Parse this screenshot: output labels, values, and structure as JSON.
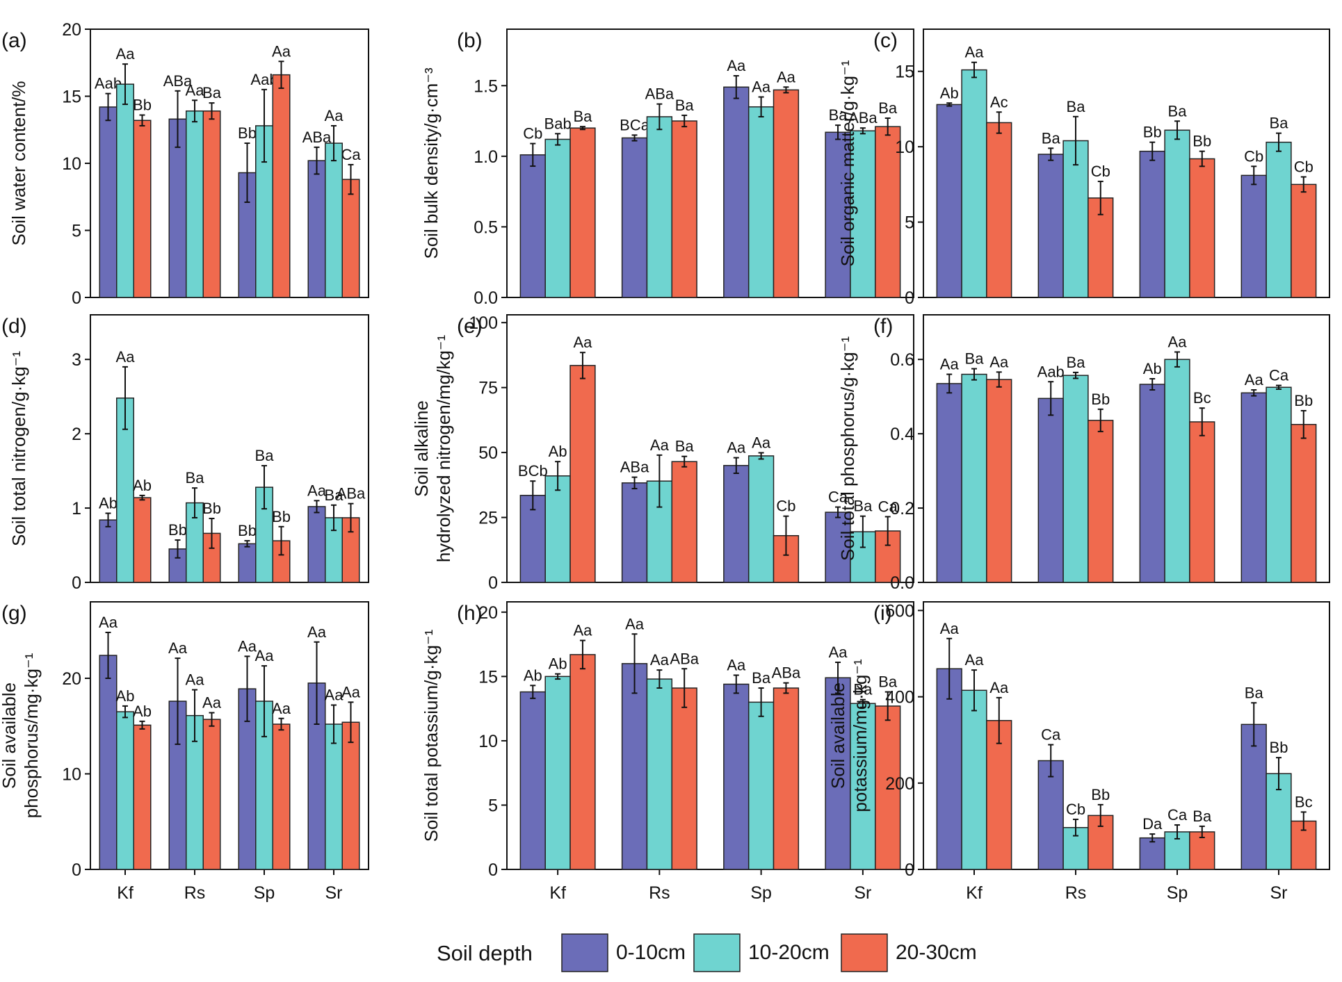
{
  "series_colors": [
    "#6b6db8",
    "#6fd4d0",
    "#f06a4e"
  ],
  "legend": {
    "title": "Soil depth",
    "items": [
      "0-10cm",
      "10-20cm",
      "20-30cm"
    ]
  },
  "chart_data": [
    {
      "type": "bar",
      "panel": "(a)",
      "ylabel": "Soil water content/%",
      "categories": [
        "Kf",
        "Rs",
        "Sp",
        "Sr"
      ],
      "ylim": [
        0,
        20
      ],
      "ticks": [
        0,
        5,
        10,
        15,
        20
      ],
      "decimals": 0,
      "show_xticks": false,
      "series": [
        {
          "name": "0-10cm",
          "values": [
            14.2,
            13.3,
            9.3,
            10.2
          ],
          "errors": [
            1.0,
            2.1,
            2.2,
            1.0
          ],
          "labels": [
            "Aab",
            "ABa",
            "Bb",
            "ABa"
          ]
        },
        {
          "name": "10-20cm",
          "values": [
            15.9,
            13.9,
            12.8,
            11.5
          ],
          "errors": [
            1.5,
            0.8,
            2.7,
            1.3
          ],
          "labels": [
            "Aa",
            "Aa",
            "Aab",
            "Aa"
          ]
        },
        {
          "name": "20-30cm",
          "values": [
            13.2,
            13.9,
            16.6,
            8.8
          ],
          "errors": [
            0.4,
            0.6,
            1.0,
            1.1
          ],
          "labels": [
            "Bb",
            "Ba",
            "Aa",
            "Ca"
          ]
        }
      ]
    },
    {
      "type": "bar",
      "panel": "(b)",
      "ylabel": "Soil bulk density/g·cm⁻³",
      "categories": [
        "Kf",
        "Rs",
        "Sp",
        "Sr"
      ],
      "ylim": [
        0,
        1.9
      ],
      "ticks": [
        0,
        0.5,
        1.0,
        1.5
      ],
      "decimals": 1,
      "show_xticks": false,
      "series": [
        {
          "name": "0-10cm",
          "values": [
            1.01,
            1.13,
            1.49,
            1.17
          ],
          "errors": [
            0.08,
            0.02,
            0.08,
            0.05
          ],
          "labels": [
            "Cb",
            "BCa",
            "Aa",
            "Ba"
          ]
        },
        {
          "name": "10-20cm",
          "values": [
            1.12,
            1.28,
            1.35,
            1.18
          ],
          "errors": [
            0.04,
            0.09,
            0.07,
            0.02
          ],
          "labels": [
            "Bab",
            "ABa",
            "Aa",
            "ABa"
          ]
        },
        {
          "name": "20-30cm",
          "values": [
            1.2,
            1.25,
            1.47,
            1.21
          ],
          "errors": [
            0.01,
            0.04,
            0.02,
            0.06
          ],
          "labels": [
            "Ba",
            "Ba",
            "Aa",
            "Ba"
          ]
        }
      ]
    },
    {
      "type": "bar",
      "panel": "(c)",
      "ylabel": "Soil organic matter/g·kg⁻¹",
      "categories": [
        "Kf",
        "Rs",
        "Sp",
        "Sr"
      ],
      "ylim": [
        0,
        17.8
      ],
      "ticks": [
        0,
        5,
        10,
        15
      ],
      "decimals": 0,
      "show_xticks": false,
      "series": [
        {
          "name": "0-10cm",
          "values": [
            12.8,
            9.5,
            9.7,
            8.1
          ],
          "errors": [
            0.1,
            0.4,
            0.6,
            0.6
          ],
          "labels": [
            "Ab",
            "Ba",
            "Bb",
            "Cb"
          ]
        },
        {
          "name": "10-20cm",
          "values": [
            15.1,
            10.4,
            11.1,
            10.3
          ],
          "errors": [
            0.5,
            1.6,
            0.6,
            0.6
          ],
          "labels": [
            "Aa",
            "Ba",
            "Ba",
            "Ba"
          ]
        },
        {
          "name": "20-30cm",
          "values": [
            11.6,
            6.6,
            9.2,
            7.5
          ],
          "errors": [
            0.7,
            1.1,
            0.5,
            0.5
          ],
          "labels": [
            "Ac",
            "Cb",
            "Bb",
            "Cb"
          ]
        }
      ]
    },
    {
      "type": "bar",
      "panel": "(d)",
      "ylabel": "Soil total nitrogen/g·kg⁻¹",
      "categories": [
        "Kf",
        "Rs",
        "Sp",
        "Sr"
      ],
      "ylim": [
        0,
        3.6
      ],
      "ticks": [
        0,
        1,
        2,
        3
      ],
      "decimals": 0,
      "show_xticks": false,
      "series": [
        {
          "name": "0-10cm",
          "values": [
            0.84,
            0.45,
            0.52,
            1.02
          ],
          "errors": [
            0.09,
            0.12,
            0.04,
            0.08
          ],
          "labels": [
            "Ab",
            "Bb",
            "Bb",
            "Aa"
          ]
        },
        {
          "name": "10-20cm",
          "values": [
            2.48,
            1.07,
            1.28,
            0.87
          ],
          "errors": [
            0.42,
            0.2,
            0.29,
            0.17
          ],
          "labels": [
            "Aa",
            "Ba",
            "Ba",
            "Ba"
          ]
        },
        {
          "name": "20-30cm",
          "values": [
            1.14,
            0.66,
            0.56,
            0.87
          ],
          "errors": [
            0.03,
            0.2,
            0.19,
            0.19
          ],
          "labels": [
            "Ab",
            "Bb",
            "Bb",
            "ABa"
          ]
        }
      ]
    },
    {
      "type": "bar",
      "panel": "(e)",
      "ylabel": "Soil alkaline hydrolyzed nitrogen/mg/kg⁻¹",
      "categories": [
        "Kf",
        "Rs",
        "Sp",
        "Sr"
      ],
      "ylim": [
        0,
        103
      ],
      "ticks": [
        0,
        25,
        50,
        75,
        100
      ],
      "decimals": 0,
      "show_xticks": false,
      "series": [
        {
          "name": "0-10cm",
          "values": [
            33.5,
            38.3,
            45,
            27
          ],
          "errors": [
            5.5,
            2.2,
            3,
            2
          ],
          "labels": [
            "BCb",
            "ABa",
            "Aa",
            "Ca"
          ]
        },
        {
          "name": "10-20cm",
          "values": [
            41,
            39,
            48.7,
            19.5
          ],
          "errors": [
            5.5,
            10,
            1.2,
            6
          ],
          "labels": [
            "Ab",
            "Aa",
            "Aa",
            "Ba"
          ]
        },
        {
          "name": "20-30cm",
          "values": [
            83.5,
            46.5,
            18,
            19.8
          ],
          "errors": [
            5,
            2,
            7.5,
            5.5
          ],
          "labels": [
            "Aa",
            "Ba",
            "Cb",
            "Ca"
          ]
        }
      ]
    },
    {
      "type": "bar",
      "panel": "(f)",
      "ylabel": "Soil total phosphorus/g·kg⁻¹",
      "categories": [
        "Kf",
        "Rs",
        "Sp",
        "Sr"
      ],
      "ylim": [
        0,
        0.72
      ],
      "ticks": [
        0,
        0.2,
        0.4,
        0.6
      ],
      "decimals": 1,
      "show_xticks": false,
      "series": [
        {
          "name": "0-10cm",
          "values": [
            0.535,
            0.495,
            0.533,
            0.51
          ],
          "errors": [
            0.025,
            0.045,
            0.015,
            0.008
          ],
          "labels": [
            "Aa",
            "Aab",
            "Ab",
            "Aa"
          ]
        },
        {
          "name": "10-20cm",
          "values": [
            0.56,
            0.557,
            0.6,
            0.525
          ],
          "errors": [
            0.015,
            0.008,
            0.02,
            0.005
          ],
          "labels": [
            "Ba",
            "Ba",
            "Aa",
            "Ca"
          ]
        },
        {
          "name": "20-30cm",
          "values": [
            0.546,
            0.436,
            0.432,
            0.425
          ],
          "errors": [
            0.02,
            0.03,
            0.037,
            0.037
          ],
          "labels": [
            "Aa",
            "Bb",
            "Bc",
            "Bb"
          ]
        }
      ]
    },
    {
      "type": "bar",
      "panel": "(g)",
      "ylabel": "Soil available phosphorus/mg·kg⁻¹",
      "categories": [
        "Kf",
        "Rs",
        "Sp",
        "Sr"
      ],
      "ylim": [
        0,
        28
      ],
      "ticks": [
        0,
        10,
        20
      ],
      "decimals": 0,
      "show_xticks": true,
      "series": [
        {
          "name": "0-10cm",
          "values": [
            22.4,
            17.6,
            18.9,
            19.5
          ],
          "errors": [
            2.4,
            4.5,
            3.4,
            4.3
          ],
          "labels": [
            "Aa",
            "Aa",
            "Aa",
            "Aa"
          ]
        },
        {
          "name": "10-20cm",
          "values": [
            16.5,
            16.1,
            17.6,
            15.2
          ],
          "errors": [
            0.6,
            2.7,
            3.7,
            2.0
          ],
          "labels": [
            "Ab",
            "Aa",
            "Aa",
            "Aa"
          ]
        },
        {
          "name": "20-30cm",
          "values": [
            15.1,
            15.7,
            15.2,
            15.4
          ],
          "errors": [
            0.4,
            0.7,
            0.6,
            2.1
          ],
          "labels": [
            "Ab",
            "Aa",
            "Aa",
            "Aa"
          ]
        }
      ]
    },
    {
      "type": "bar",
      "panel": "(h)",
      "ylabel": "Soil total potassium/g·kg⁻¹",
      "categories": [
        "Kf",
        "Rs",
        "Sp",
        "Sr"
      ],
      "ylim": [
        0,
        20.8
      ],
      "ticks": [
        0,
        5,
        10,
        15,
        20
      ],
      "decimals": 0,
      "show_xticks": true,
      "series": [
        {
          "name": "0-10cm",
          "values": [
            13.8,
            16,
            14.4,
            14.9
          ],
          "errors": [
            0.5,
            2.3,
            0.7,
            1.2
          ],
          "labels": [
            "Ab",
            "Aa",
            "Aa",
            "Aa"
          ]
        },
        {
          "name": "10-20cm",
          "values": [
            15,
            14.8,
            13,
            12.9
          ],
          "errors": [
            0.2,
            0.7,
            1.1,
            0.3
          ],
          "labels": [
            "Ab",
            "Aa",
            "Ba",
            "Ba"
          ]
        },
        {
          "name": "20-30cm",
          "values": [
            16.7,
            14.1,
            14.1,
            12.7
          ],
          "errors": [
            1.1,
            1.5,
            0.4,
            1.1
          ],
          "labels": [
            "Aa",
            "ABa",
            "ABa",
            "Ba"
          ]
        }
      ]
    },
    {
      "type": "bar",
      "panel": "(i)",
      "ylabel": "Soil available potassium/mg·kg⁻¹",
      "categories": [
        "Kf",
        "Rs",
        "Sp",
        "Sr"
      ],
      "ylim": [
        0,
        620
      ],
      "ticks": [
        0,
        200,
        400,
        600
      ],
      "decimals": 0,
      "show_xticks": true,
      "series": [
        {
          "name": "0-10cm",
          "values": [
            465,
            252,
            73,
            336
          ],
          "errors": [
            70,
            37,
            9,
            50
          ],
          "labels": [
            "Aa",
            "Ca",
            "Da",
            "Ba"
          ]
        },
        {
          "name": "10-20cm",
          "values": [
            415,
            97,
            87,
            222
          ],
          "errors": [
            47,
            19,
            16,
            37
          ],
          "labels": [
            "Aa",
            "Cb",
            "Ca",
            "Bb"
          ]
        },
        {
          "name": "20-30cm",
          "values": [
            345,
            125,
            87,
            112
          ],
          "errors": [
            53,
            25,
            13,
            21
          ],
          "labels": [
            "Aa",
            "Bb",
            "Ba",
            "Bc"
          ]
        }
      ]
    }
  ]
}
